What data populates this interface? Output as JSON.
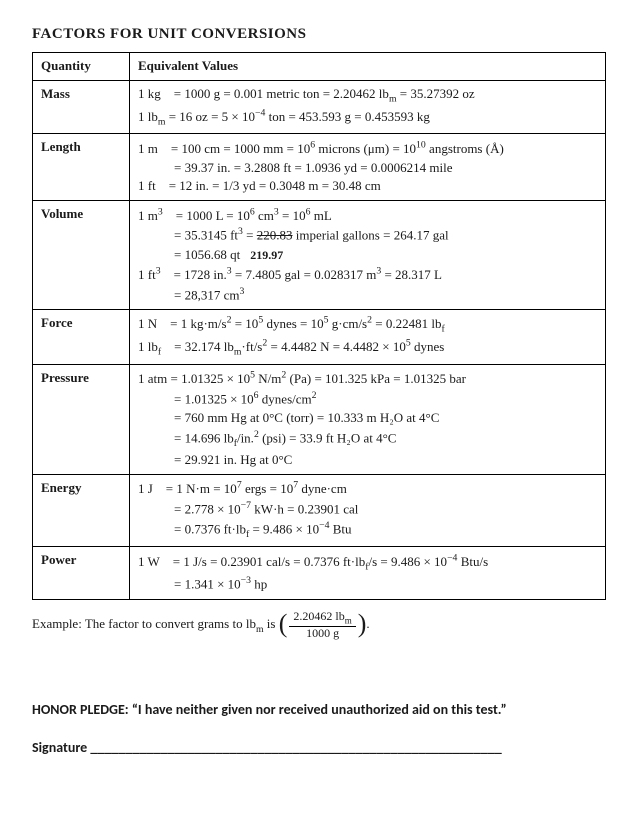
{
  "title": "FACTORS FOR UNIT CONVERSIONS",
  "headers": {
    "col1": "Quantity",
    "col2": "Equivalent Values"
  },
  "rows": {
    "mass": {
      "label": "Mass",
      "l1": "1 kg = 1000 g = 0.001 metric ton = 2.20462 lb",
      "l1b": " = 35.27392 oz",
      "l2": "1 lb",
      "l2b": " = 16 oz = 5 × 10",
      "l2c": " ton = 453.593 g = 0.453593 kg"
    },
    "length": {
      "label": "Length",
      "l1": "1 m = 100 cm = 1000 mm = 10",
      "l1b": " microns (μm) = 10",
      "l1c": " angstroms (Å)",
      "l2": "= 39.37 in. = 3.2808 ft = 1.0936 yd = 0.0006214 mile",
      "l3": "1 ft = 12 in. = 1/3 yd = 0.3048 m = 30.48 cm"
    },
    "volume": {
      "label": "Volume",
      "l1a": "1 m",
      "l1b": " = 1000 L = 10",
      "l1c": " cm",
      "l1d": " = 10",
      "l1e": " mL",
      "l2a": "= 35.3145 ft",
      "l2b": " = ",
      "strike": "220.83",
      "l2c": " imperial gallons = 264.17 gal",
      "l3": "= 1056.68 qt",
      "hand": "219.97",
      "l4a": "1 ft",
      "l4b": " = 1728 in.",
      "l4c": " = 7.4805 gal = 0.028317 m",
      "l4d": " = 28.317 L",
      "l5": "= 28,317 cm"
    },
    "force": {
      "label": "Force",
      "l1a": "1 N = 1 kg·m/s",
      "l1b": " = 10",
      "l1c": " dynes = 10",
      "l1d": " g·cm/s",
      "l1e": " = 0.22481 lb",
      "l2a": "1 lb",
      "l2b": " = 32.174 lb",
      "l2c": "·ft/s",
      "l2d": " = 4.4482 N = 4.4482 × 10",
      "l2e": " dynes"
    },
    "pressure": {
      "label": "Pressure",
      "l1a": "1 atm = 1.01325 × 10",
      "l1b": " N/m",
      "l1c": " (Pa) = 101.325 kPa = 1.01325 bar",
      "l2a": "= 1.01325 × 10",
      "l2b": " dynes/cm",
      "l3": "= 760 mm Hg at 0°C (torr) = 10.333 m H₂O at 4°C",
      "l4a": "= 14.696 lb",
      "l4b": "/in.",
      "l4c": " (psi) = 33.9 ft H₂O at 4°C",
      "l5": "= 29.921 in. Hg at 0°C"
    },
    "energy": {
      "label": "Energy",
      "l1a": "1 J = 1 N·m = 10",
      "l1b": " ergs = 10",
      "l1c": " dyne·cm",
      "l2a": "= 2.778 × 10",
      "l2b": " kW·h = 0.23901 cal",
      "l3a": "= 0.7376 ft·lb",
      "l3b": " = 9.486 × 10",
      "l3c": " Btu"
    },
    "power": {
      "label": "Power",
      "l1a": "1 W = 1 J/s = 0.23901 cal/s = 0.7376 ft·lb",
      "l1b": "/s = 9.486 × 10",
      "l1c": " Btu/s",
      "l2a": "= 1.341 × 10",
      "l2b": " hp"
    }
  },
  "example": {
    "prefix": "Example: The factor to convert grams to lb",
    "suffix": " is ",
    "num": "2.20462 lb",
    "den": "1000 g"
  },
  "honor": "HONOR PLEDGE: “I have neither given nor received unauthorized aid on this test.”",
  "sigLabel": "Signature ",
  "sigLine": "___________________________________________________________"
}
